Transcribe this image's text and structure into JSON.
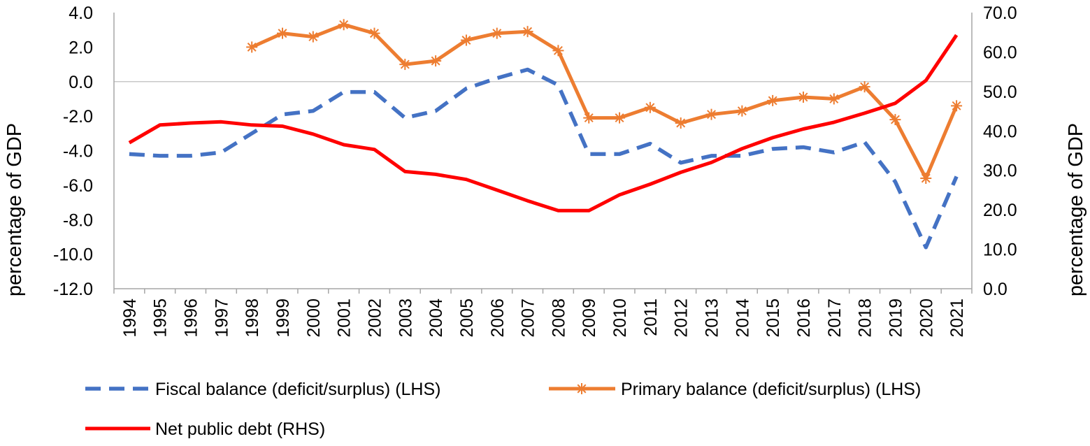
{
  "chart_data": {
    "type": "line",
    "title": "",
    "x": [
      1994,
      1995,
      1996,
      1997,
      1998,
      1999,
      2000,
      2001,
      2002,
      2003,
      2004,
      2005,
      2006,
      2007,
      2008,
      2009,
      2010,
      2011,
      2012,
      2013,
      2014,
      2015,
      2016,
      2017,
      2018,
      2019,
      2020,
      2021
    ],
    "x_tick_labels": [
      "1994",
      "1995",
      "1996",
      "1997",
      "1998",
      "1999",
      "2000",
      "2001",
      "2002",
      "2003",
      "2004",
      "2005",
      "2006",
      "2007",
      "2008",
      "2009",
      "2010",
      "2011",
      "2012",
      "2013",
      "2014",
      "2015",
      "2016",
      "2017",
      "2018",
      "2019",
      "2020",
      "2021"
    ],
    "ylabel_left": "percentage of GDP",
    "ylabel_right": "percentage of GDP",
    "ylim_left": [
      -12,
      4
    ],
    "ylim_right": [
      0,
      70
    ],
    "yticks_left": [
      "4.0",
      "2.0",
      "0.0",
      "-2.0",
      "-4.0",
      "-6.0",
      "-8.0",
      "-10.0",
      "-12.0"
    ],
    "yticks_right": [
      "70.0",
      "60.0",
      "50.0",
      "40.0",
      "30.0",
      "20.0",
      "10.0",
      "0.0"
    ],
    "zero_line": true,
    "legend_position": "bottom",
    "series": [
      {
        "name": "Fiscal balance (deficit/surplus) (LHS)",
        "axis": "left",
        "style": "dashed",
        "color": "#4472C4",
        "values": [
          -4.2,
          -4.3,
          -4.3,
          -4.1,
          -3.0,
          -1.9,
          -1.7,
          -0.6,
          -0.6,
          -2.1,
          -1.7,
          -0.4,
          0.2,
          0.7,
          -0.2,
          -4.2,
          -4.2,
          -3.6,
          -4.7,
          -4.3,
          -4.3,
          -3.9,
          -3.8,
          -4.1,
          -3.5,
          -5.8,
          -9.6,
          -5.5
        ]
      },
      {
        "name": "Primary balance (deficit/surplus) (LHS)",
        "axis": "left",
        "style": "solid-markers",
        "color": "#ED7D31",
        "values": [
          null,
          null,
          null,
          null,
          2.0,
          2.8,
          2.6,
          3.3,
          2.8,
          1.0,
          1.2,
          2.4,
          2.8,
          2.9,
          1.8,
          -2.1,
          -2.1,
          -1.5,
          -2.4,
          -1.9,
          -1.7,
          -1.1,
          -0.9,
          -1.0,
          -0.3,
          -2.2,
          -5.6,
          -1.4
        ]
      },
      {
        "name": "Net public debt (RHS)",
        "axis": "right",
        "style": "solid",
        "color": "#FF0000",
        "values": [
          37.0,
          41.5,
          42.0,
          42.3,
          41.5,
          41.2,
          39.2,
          36.5,
          35.3,
          29.7,
          29.0,
          27.7,
          25.0,
          22.3,
          19.8,
          19.8,
          23.8,
          26.5,
          29.5,
          32.0,
          35.5,
          38.3,
          40.5,
          42.2,
          44.5,
          47.0,
          52.8,
          64.3
        ]
      }
    ]
  }
}
